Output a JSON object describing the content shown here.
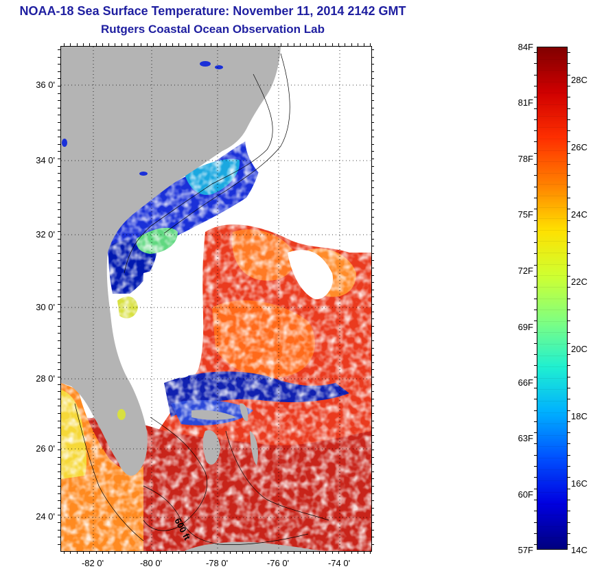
{
  "title": "NOAA-18 Sea Surface Temperature:  November 11, 2014 2142 GMT",
  "subtitle": "Rutgers Coastal Ocean Observation Lab",
  "map": {
    "lat_ticks": [
      "36 0'",
      "34 0'",
      "32 0'",
      "30 0'",
      "28 0'",
      "26 0'",
      "24 0'"
    ],
    "lon_ticks": [
      "-82 0'",
      "-80 0'",
      "-78 0'",
      "-76 0'",
      "-74 0'"
    ],
    "contour_label": "600 ft",
    "colors": {
      "land": "#b4b4b4",
      "cloud": "#ffffff",
      "gulf_stream": "#e0321c",
      "shelf_cold": "#1a2ad0",
      "caribbean": "#c8261c"
    }
  },
  "colorbar": {
    "fahrenheit_ticks": [
      "84F",
      "81F",
      "78F",
      "75F",
      "72F",
      "69F",
      "66F",
      "63F",
      "60F",
      "57F"
    ],
    "celsius_ticks": [
      "28C",
      "26C",
      "24C",
      "22C",
      "20C",
      "18C",
      "16C",
      "14C"
    ],
    "min_c": 14,
    "max_c": 29,
    "palette": [
      "#00007f",
      "#0000e0",
      "#0050ff",
      "#00b0ff",
      "#20f0d0",
      "#80ff80",
      "#d0ff30",
      "#ffe000",
      "#ff8000",
      "#ff3000",
      "#d00000",
      "#800000"
    ]
  }
}
